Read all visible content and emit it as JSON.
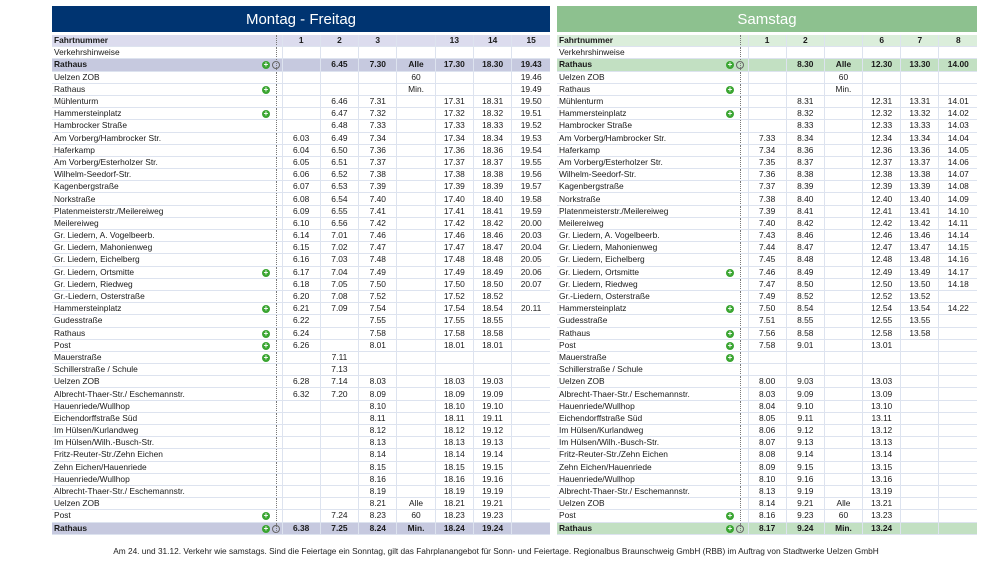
{
  "left": {
    "title": "Montag - Freitag",
    "header_label": "Fahrtnummer",
    "notes_label": "Verkehrshinweise",
    "columns": [
      "1",
      "2",
      "3",
      "",
      "13",
      "14",
      "15"
    ],
    "times": [
      [
        "",
        "6.45",
        "7.30",
        "Alle",
        "17.30",
        "18.30",
        "19.43"
      ],
      [
        "",
        "",
        "",
        "60",
        "",
        "",
        "19.46"
      ],
      [
        "",
        "",
        "",
        "Min.",
        "",
        "",
        "19.49"
      ],
      [
        "",
        "6.46",
        "7.31",
        "",
        "17.31",
        "18.31",
        "19.50"
      ],
      [
        "",
        "6.47",
        "7.32",
        "",
        "17.32",
        "18.32",
        "19.51"
      ],
      [
        "",
        "6.48",
        "7.33",
        "",
        "17.33",
        "18.33",
        "19.52"
      ],
      [
        "6.03",
        "6.49",
        "7.34",
        "",
        "17.34",
        "18.34",
        "19.53"
      ],
      [
        "6.04",
        "6.50",
        "7.36",
        "",
        "17.36",
        "18.36",
        "19.54"
      ],
      [
        "6.05",
        "6.51",
        "7.37",
        "",
        "17.37",
        "18.37",
        "19.55"
      ],
      [
        "6.06",
        "6.52",
        "7.38",
        "",
        "17.38",
        "18.38",
        "19.56"
      ],
      [
        "6.07",
        "6.53",
        "7.39",
        "",
        "17.39",
        "18.39",
        "19.57"
      ],
      [
        "6.08",
        "6.54",
        "7.40",
        "",
        "17.40",
        "18.40",
        "19.58"
      ],
      [
        "6.09",
        "6.55",
        "7.41",
        "",
        "17.41",
        "18.41",
        "19.59"
      ],
      [
        "6.10",
        "6.56",
        "7.42",
        "",
        "17.42",
        "18.42",
        "20.00"
      ],
      [
        "6.14",
        "7.01",
        "7.46",
        "",
        "17.46",
        "18.46",
        "20.03"
      ],
      [
        "6.15",
        "7.02",
        "7.47",
        "",
        "17.47",
        "18.47",
        "20.04"
      ],
      [
        "6.16",
        "7.03",
        "7.48",
        "",
        "17.48",
        "18.48",
        "20.05"
      ],
      [
        "6.17",
        "7.04",
        "7.49",
        "",
        "17.49",
        "18.49",
        "20.06"
      ],
      [
        "6.18",
        "7.05",
        "7.50",
        "",
        "17.50",
        "18.50",
        "20.07"
      ],
      [
        "6.20",
        "7.08",
        "7.52",
        "",
        "17.52",
        "18.52",
        ""
      ],
      [
        "6.21",
        "7.09",
        "7.54",
        "",
        "17.54",
        "18.54",
        "20.11"
      ],
      [
        "6.22",
        "",
        "7.55",
        "",
        "17.55",
        "18.55",
        ""
      ],
      [
        "6.24",
        "",
        "7.58",
        "",
        "17.58",
        "18.58",
        ""
      ],
      [
        "6.26",
        "",
        "8.01",
        "",
        "18.01",
        "18.01",
        ""
      ],
      [
        "",
        "7.11",
        "",
        "",
        "",
        "",
        ""
      ],
      [
        "",
        "7.13",
        "",
        "",
        "",
        "",
        ""
      ],
      [
        "6.28",
        "7.14",
        "8.03",
        "",
        "18.03",
        "19.03",
        ""
      ],
      [
        "6.32",
        "7.20",
        "8.09",
        "",
        "18.09",
        "19.09",
        ""
      ],
      [
        "",
        "",
        "8.10",
        "",
        "18.10",
        "19.10",
        ""
      ],
      [
        "",
        "",
        "8.11",
        "",
        "18.11",
        "19.11",
        ""
      ],
      [
        "",
        "",
        "8.12",
        "",
        "18.12",
        "19.12",
        ""
      ],
      [
        "",
        "",
        "8.13",
        "",
        "18.13",
        "19.13",
        ""
      ],
      [
        "",
        "",
        "8.14",
        "",
        "18.14",
        "19.14",
        ""
      ],
      [
        "",
        "",
        "8.15",
        "",
        "18.15",
        "19.15",
        ""
      ],
      [
        "",
        "",
        "8.16",
        "",
        "18.16",
        "19.16",
        ""
      ],
      [
        "",
        "",
        "8.19",
        "",
        "18.19",
        "19.19",
        ""
      ],
      [
        "",
        "",
        "8.21",
        "Alle",
        "18.21",
        "19.21",
        ""
      ],
      [
        "",
        "7.24",
        "8.23",
        "60",
        "18.23",
        "19.23",
        ""
      ],
      [
        "6.38",
        "7.25",
        "8.24",
        "Min.",
        "18.24",
        "19.24",
        ""
      ]
    ]
  },
  "right": {
    "title": "Samstag",
    "header_label": "Fahrtnummer",
    "notes_label": "Verkehrshinweise",
    "columns": [
      "1",
      "2",
      "",
      "6",
      "7",
      "8"
    ],
    "times": [
      [
        "",
        "8.30",
        "Alle",
        "12.30",
        "13.30",
        "14.00"
      ],
      [
        "",
        "",
        "60",
        "",
        "",
        ""
      ],
      [
        "",
        "",
        "Min.",
        "",
        "",
        ""
      ],
      [
        "",
        "8.31",
        "",
        "12.31",
        "13.31",
        "14.01"
      ],
      [
        "",
        "8.32",
        "",
        "12.32",
        "13.32",
        "14.02"
      ],
      [
        "",
        "8.33",
        "",
        "12.33",
        "13.33",
        "14.03"
      ],
      [
        "7.33",
        "8.34",
        "",
        "12.34",
        "13.34",
        "14.04"
      ],
      [
        "7.34",
        "8.36",
        "",
        "12.36",
        "13.36",
        "14.05"
      ],
      [
        "7.35",
        "8.37",
        "",
        "12.37",
        "13.37",
        "14.06"
      ],
      [
        "7.36",
        "8.38",
        "",
        "12.38",
        "13.38",
        "14.07"
      ],
      [
        "7.37",
        "8.39",
        "",
        "12.39",
        "13.39",
        "14.08"
      ],
      [
        "7.38",
        "8.40",
        "",
        "12.40",
        "13.40",
        "14.09"
      ],
      [
        "7.39",
        "8.41",
        "",
        "12.41",
        "13.41",
        "14.10"
      ],
      [
        "7.40",
        "8.42",
        "",
        "12.42",
        "13.42",
        "14.11"
      ],
      [
        "7.43",
        "8.46",
        "",
        "12.46",
        "13.46",
        "14.14"
      ],
      [
        "7.44",
        "8.47",
        "",
        "12.47",
        "13.47",
        "14.15"
      ],
      [
        "7.45",
        "8.48",
        "",
        "12.48",
        "13.48",
        "14.16"
      ],
      [
        "7.46",
        "8.49",
        "",
        "12.49",
        "13.49",
        "14.17"
      ],
      [
        "7.47",
        "8.50",
        "",
        "12.50",
        "13.50",
        "14.18"
      ],
      [
        "7.49",
        "8.52",
        "",
        "12.52",
        "13.52",
        ""
      ],
      [
        "7.50",
        "8.54",
        "",
        "12.54",
        "13.54",
        "14.22"
      ],
      [
        "7.51",
        "8.55",
        "",
        "12.55",
        "13.55",
        ""
      ],
      [
        "7.56",
        "8.58",
        "",
        "12.58",
        "13.58",
        ""
      ],
      [
        "7.58",
        "9.01",
        "",
        "13.01",
        "",
        ""
      ],
      [
        "",
        "",
        "",
        "",
        "",
        ""
      ],
      [
        "",
        "",
        "",
        "",
        "",
        ""
      ],
      [
        "8.00",
        "9.03",
        "",
        "13.03",
        "",
        ""
      ],
      [
        "8.03",
        "9.09",
        "",
        "13.09",
        "",
        ""
      ],
      [
        "8.04",
        "9.10",
        "",
        "13.10",
        "",
        ""
      ],
      [
        "8.05",
        "9.11",
        "",
        "13.11",
        "",
        ""
      ],
      [
        "8.06",
        "9.12",
        "",
        "13.12",
        "",
        ""
      ],
      [
        "8.07",
        "9.13",
        "",
        "13.13",
        "",
        ""
      ],
      [
        "8.08",
        "9.14",
        "",
        "13.14",
        "",
        ""
      ],
      [
        "8.09",
        "9.15",
        "",
        "13.15",
        "",
        ""
      ],
      [
        "8.10",
        "9.16",
        "",
        "13.16",
        "",
        ""
      ],
      [
        "8.13",
        "9.19",
        "",
        "13.19",
        "",
        ""
      ],
      [
        "8.14",
        "9.21",
        "Alle",
        "13.21",
        "",
        ""
      ],
      [
        "8.16",
        "9.23",
        "60",
        "13.23",
        "",
        ""
      ],
      [
        "8.17",
        "9.24",
        "Min.",
        "13.24",
        "",
        ""
      ]
    ]
  },
  "stops": [
    {
      "name": "Rathaus",
      "icon": "plus-ring"
    },
    {
      "name": "Uelzen ZOB",
      "icon": ""
    },
    {
      "name": "Rathaus",
      "icon": "plus"
    },
    {
      "name": "Mühlenturm",
      "icon": ""
    },
    {
      "name": "Hammersteinplatz",
      "icon": "plus"
    },
    {
      "name": "Hambrocker Straße",
      "icon": ""
    },
    {
      "name": "Am Vorberg/Hambrocker Str.",
      "icon": ""
    },
    {
      "name": "Haferkamp",
      "icon": ""
    },
    {
      "name": "Am Vorberg/Esterholzer Str.",
      "icon": ""
    },
    {
      "name": "Wilhelm-Seedorf-Str.",
      "icon": ""
    },
    {
      "name": "Kagenbergstraße",
      "icon": ""
    },
    {
      "name": "Norkstraße",
      "icon": ""
    },
    {
      "name": "Platenmeisterstr./Meilereiweg",
      "icon": ""
    },
    {
      "name": "Meilereiweg",
      "icon": ""
    },
    {
      "name": "Gr. Liedern, A. Vogelbeerb.",
      "icon": ""
    },
    {
      "name": "Gr. Liedern, Mahonienweg",
      "icon": ""
    },
    {
      "name": "Gr. Liedern, Eichelberg",
      "icon": ""
    },
    {
      "name": "Gr. Liedern, Ortsmitte",
      "icon": "plus"
    },
    {
      "name": "Gr. Liedern, Riedweg",
      "icon": ""
    },
    {
      "name": "Gr.-Liedern, Osterstraße",
      "icon": ""
    },
    {
      "name": "Hammersteinplatz",
      "icon": "plus"
    },
    {
      "name": "Gudesstraße",
      "icon": ""
    },
    {
      "name": "Rathaus",
      "icon": "plus"
    },
    {
      "name": "Post",
      "icon": "plus"
    },
    {
      "name": "Mauerstraße",
      "icon": "plus"
    },
    {
      "name": "Schillerstraße / Schule",
      "icon": ""
    },
    {
      "name": "Uelzen ZOB",
      "icon": ""
    },
    {
      "name": "Albrecht-Thaer-Str./ Eschemannstr.",
      "icon": ""
    },
    {
      "name": "Hauenriede/Wullhop",
      "icon": ""
    },
    {
      "name": "Eichendorffstraße Süd",
      "icon": ""
    },
    {
      "name": "Im Hülsen/Kurlandweg",
      "icon": ""
    },
    {
      "name": "Im Hülsen/Wilh.-Busch-Str.",
      "icon": ""
    },
    {
      "name": "Fritz-Reuter-Str./Zehn Eichen",
      "icon": ""
    },
    {
      "name": "Zehn Eichen/Hauenriede",
      "icon": ""
    },
    {
      "name": "Hauenriede/Wullhop",
      "icon": ""
    },
    {
      "name": "Albrecht-Thaer-Str./ Eschemannstr.",
      "icon": ""
    },
    {
      "name": "Uelzen ZOB",
      "icon": ""
    },
    {
      "name": "Post",
      "icon": "plus"
    },
    {
      "name": "Rathaus",
      "icon": "plus-ring"
    }
  ],
  "plus_glyph": "+",
  "footer": "Am 24. und 31.12. Verkehr wie samstags. Sind die Feiertage ein Sonntag, gilt das Fahrplanangebot für Sonn- und Feiertage. Regionalbus Braunschweig GmbH (RBB) im Auftrag von Stadtwerke Uelzen GmbH"
}
